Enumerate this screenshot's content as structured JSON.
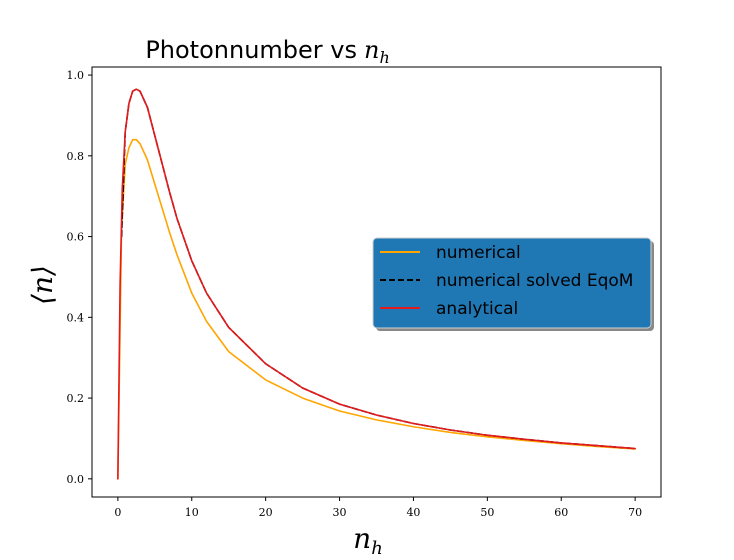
{
  "chart_data": {
    "type": "line",
    "title": "Photonnumber vs",
    "title_math": "n",
    "title_math_sub": "h",
    "xlabel": "n",
    "xlabel_sub": "h",
    "ylabel": "⟨n⟩",
    "xlim": [
      -3.5,
      73.5
    ],
    "ylim": [
      -0.045,
      1.02
    ],
    "xticks": [
      0,
      10,
      20,
      30,
      40,
      50,
      60,
      70
    ],
    "yticks": [
      0.0,
      0.2,
      0.4,
      0.6,
      0.8,
      1.0
    ],
    "ytick_labels": [
      "0.0",
      "0.2",
      "0.4",
      "0.6",
      "0.8",
      "1.0"
    ],
    "grid": false,
    "legend": {
      "placement": "center-right",
      "background": "#1f77b4"
    },
    "series": [
      {
        "name": "numerical",
        "color": "#ffa500",
        "dash": "solid",
        "x": [
          0,
          0.5,
          1,
          1.5,
          2,
          2.5,
          3,
          4,
          5,
          6,
          7,
          8,
          10,
          12,
          15,
          20,
          25,
          30,
          35,
          40,
          45,
          50,
          55,
          60,
          65,
          70
        ],
        "y": [
          0.0,
          0.62,
          0.78,
          0.82,
          0.84,
          0.84,
          0.83,
          0.79,
          0.73,
          0.67,
          0.61,
          0.555,
          0.46,
          0.39,
          0.315,
          0.245,
          0.2,
          0.168,
          0.146,
          0.129,
          0.115,
          0.104,
          0.095,
          0.087,
          0.08,
          0.074
        ]
      },
      {
        "name": "numerical solved EqoM",
        "color": "#000000",
        "dash": "dashed",
        "x": [
          0.5,
          1,
          1.5,
          2,
          2.5,
          3,
          4,
          5,
          6,
          7,
          8,
          10,
          12,
          15,
          20,
          25,
          30,
          35,
          40,
          45,
          50,
          55,
          60,
          65,
          70
        ],
        "y": [
          0.6,
          0.86,
          0.93,
          0.96,
          0.965,
          0.96,
          0.92,
          0.85,
          0.78,
          0.71,
          0.645,
          0.54,
          0.46,
          0.375,
          0.285,
          0.225,
          0.185,
          0.158,
          0.137,
          0.121,
          0.108,
          0.098,
          0.089,
          0.082,
          0.075
        ]
      },
      {
        "name": "analytical",
        "color": "#e41a1c",
        "dash": "solid",
        "x": [
          0,
          0.3,
          0.6,
          1,
          1.5,
          2,
          2.5,
          3,
          4,
          5,
          6,
          7,
          8,
          10,
          12,
          15,
          20,
          25,
          30,
          35,
          40,
          45,
          50,
          55,
          60,
          65,
          70
        ],
        "y": [
          0.0,
          0.48,
          0.72,
          0.86,
          0.93,
          0.96,
          0.965,
          0.96,
          0.92,
          0.85,
          0.78,
          0.71,
          0.645,
          0.54,
          0.46,
          0.375,
          0.285,
          0.225,
          0.185,
          0.158,
          0.137,
          0.121,
          0.108,
          0.098,
          0.089,
          0.082,
          0.075
        ]
      }
    ]
  }
}
